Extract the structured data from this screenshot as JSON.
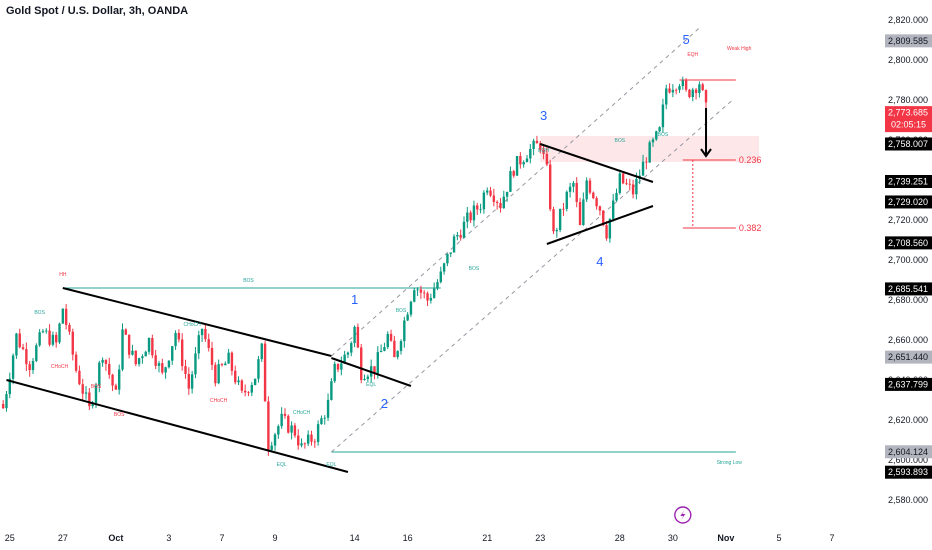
{
  "header": {
    "title": "Gold Spot / U.S. Dollar, 3h, OANDA"
  },
  "colors": {
    "up": "#089981",
    "down": "#f23645",
    "trend": "#000000",
    "channel": "#9598a1",
    "structure": "#26a69a",
    "wave": "#2962ff",
    "fib": "#f23645"
  },
  "chart_data": {
    "type": "candlestick",
    "symbol": "Gold Spot / U.S. Dollar",
    "timeframe": "3h",
    "source": "OANDA",
    "ylim": [
      2570,
      2830
    ],
    "y_ticks": [
      2580,
      2600,
      2620,
      2640,
      2660,
      2680,
      2700,
      2720,
      2740,
      2760,
      2780,
      2800,
      2820
    ],
    "y_tick_labels": [
      "2,580.000",
      "2,600.000",
      "2,620.000",
      "2,640.000",
      "2,660.000",
      "2,680.000",
      "2,700.000",
      "2,720.000",
      "2,740.000",
      "2,760.000",
      "2,780.000",
      "2,800.000",
      "2,820.000"
    ],
    "x_ticks": [
      {
        "label": "25",
        "i": 2
      },
      {
        "label": "27",
        "i": 18
      },
      {
        "label": "Oct",
        "i": 34
      },
      {
        "label": "3",
        "i": 50
      },
      {
        "label": "7",
        "i": 66
      },
      {
        "label": "9",
        "i": 82
      },
      {
        "label": "14",
        "i": 106
      },
      {
        "label": "16",
        "i": 122
      },
      {
        "label": "21",
        "i": 146
      },
      {
        "label": "23",
        "i": 162
      },
      {
        "label": "28",
        "i": 186
      },
      {
        "label": "30",
        "i": 202
      },
      {
        "label": "Nov",
        "i": 218
      },
      {
        "label": "5",
        "i": 234
      },
      {
        "label": "7",
        "i": 250
      }
    ],
    "n_slots": 260,
    "price_path": [
      [
        0,
        2626
      ],
      [
        4,
        2662
      ],
      [
        8,
        2648
      ],
      [
        12,
        2664
      ],
      [
        16,
        2658
      ],
      [
        18,
        2676
      ],
      [
        22,
        2645
      ],
      [
        26,
        2625
      ],
      [
        30,
        2654
      ],
      [
        34,
        2632
      ],
      [
        36,
        2664
      ],
      [
        40,
        2648
      ],
      [
        44,
        2660
      ],
      [
        48,
        2642
      ],
      [
        52,
        2664
      ],
      [
        56,
        2636
      ],
      [
        60,
        2666
      ],
      [
        64,
        2642
      ],
      [
        68,
        2650
      ],
      [
        72,
        2632
      ],
      [
        76,
        2642
      ],
      [
        78,
        2655
      ],
      [
        80,
        2608
      ],
      [
        84,
        2620
      ],
      [
        88,
        2614
      ],
      [
        90,
        2606
      ],
      [
        94,
        2612
      ],
      [
        98,
        2628
      ],
      [
        100,
        2645
      ],
      [
        104,
        2654
      ],
      [
        106,
        2666
      ],
      [
        108,
        2644
      ],
      [
        112,
        2646
      ],
      [
        116,
        2662
      ],
      [
        118,
        2650
      ],
      [
        122,
        2676
      ],
      [
        124,
        2688
      ],
      [
        128,
        2680
      ],
      [
        132,
        2692
      ],
      [
        136,
        2710
      ],
      [
        140,
        2720
      ],
      [
        144,
        2728
      ],
      [
        146,
        2738
      ],
      [
        150,
        2728
      ],
      [
        154,
        2746
      ],
      [
        158,
        2754
      ],
      [
        162,
        2758
      ],
      [
        164,
        2744
      ],
      [
        166,
        2712
      ],
      [
        170,
        2732
      ],
      [
        172,
        2738
      ],
      [
        174,
        2716
      ],
      [
        176,
        2740
      ],
      [
        180,
        2726
      ],
      [
        182,
        2714
      ],
      [
        186,
        2740
      ],
      [
        190,
        2734
      ],
      [
        194,
        2752
      ],
      [
        198,
        2764
      ],
      [
        200,
        2786
      ],
      [
        204,
        2790
      ],
      [
        206,
        2783
      ],
      [
        210,
        2789
      ],
      [
        212,
        2775
      ]
    ],
    "price_tags": [
      {
        "label": "2,809.585",
        "value": 2809.585,
        "bg": "#b2b5be",
        "fg": "#131722"
      },
      {
        "label": "2,773.685",
        "value": 2773.685,
        "bg": "#f23645",
        "fg": "#ffffff",
        "countdown": "02:05:15"
      },
      {
        "label": "2,758.007",
        "value": 2758.007,
        "bg": "#000000",
        "fg": "#ffffff"
      },
      {
        "label": "2,739.251",
        "value": 2739.251,
        "bg": "#000000",
        "fg": "#ffffff"
      },
      {
        "label": "2,729.020",
        "value": 2729.02,
        "bg": "#000000",
        "fg": "#ffffff"
      },
      {
        "label": "2,708.560",
        "value": 2708.56,
        "bg": "#000000",
        "fg": "#ffffff"
      },
      {
        "label": "2,685.541",
        "value": 2685.541,
        "bg": "#000000",
        "fg": "#ffffff"
      },
      {
        "label": "2,651.440",
        "value": 2651.44,
        "bg": "#b2b5be",
        "fg": "#131722"
      },
      {
        "label": "2,637.799",
        "value": 2637.799,
        "bg": "#000000",
        "fg": "#ffffff"
      },
      {
        "label": "2,604.124",
        "value": 2604.124,
        "bg": "#b2b5be",
        "fg": "#131722"
      },
      {
        "label": "2,593.893",
        "value": 2593.893,
        "bg": "#000000",
        "fg": "#ffffff"
      }
    ],
    "trendlines": [
      {
        "from": [
          18,
          2686
        ],
        "to": [
          99,
          2652
        ]
      },
      {
        "from": [
          1,
          2640
        ],
        "to": [
          104,
          2594
        ]
      },
      {
        "from": [
          99,
          2651
        ],
        "to": [
          123,
          2637
        ]
      },
      {
        "from": [
          162,
          2758
        ],
        "to": [
          196,
          2739
        ]
      },
      {
        "from": [
          164,
          2708
        ],
        "to": [
          196,
          2727
        ]
      }
    ],
    "channel_lines": [
      {
        "from": [
          99,
          2652
        ],
        "to": [
          210,
          2816
        ]
      },
      {
        "from": [
          99,
          2604
        ],
        "to": [
          220,
          2780
        ]
      }
    ],
    "structure_lines": [
      {
        "label": "BOS",
        "value": 2686,
        "from": 18,
        "to": 132
      },
      {
        "label": "Strong Low",
        "value": 2604,
        "from": 99,
        "to": 221
      }
    ],
    "zones": [
      {
        "from": 162,
        "to": 228,
        "low": 2749,
        "high": 2762
      }
    ],
    "weak_high": {
      "label": "Weak High",
      "value": 2790,
      "from": 204,
      "to": 221
    },
    "fib_levels": [
      {
        "label": "0.236",
        "value": 2750,
        "from": 205,
        "to": 221
      },
      {
        "label": "0.382",
        "value": 2716,
        "from": 205,
        "to": 221
      }
    ],
    "projection_arrow": {
      "from": [
        212,
        2776
      ],
      "to": [
        212,
        2752
      ]
    },
    "wave_labels": [
      {
        "label": "1",
        "i": 106,
        "value": 2678
      },
      {
        "label": "2",
        "i": 115,
        "value": 2626
      },
      {
        "label": "3",
        "i": 163,
        "value": 2770
      },
      {
        "label": "4",
        "i": 180,
        "value": 2697
      },
      {
        "label": "5",
        "i": 206,
        "value": 2808
      }
    ],
    "annotations": [
      {
        "text": "HH",
        "i": 18,
        "value": 2692,
        "color": "#f23645"
      },
      {
        "text": "BOS",
        "i": 74,
        "value": 2689,
        "color": "#26a69a"
      },
      {
        "text": "BOS",
        "i": 11,
        "value": 2673,
        "color": "#26a69a"
      },
      {
        "text": "CHoCH",
        "i": 57,
        "value": 2667,
        "color": "#26a69a"
      },
      {
        "text": "CHoCH",
        "i": 17,
        "value": 2646,
        "color": "#f23645"
      },
      {
        "text": "BOS",
        "i": 28,
        "value": 2636,
        "color": "#f23645"
      },
      {
        "text": "CHoCH",
        "i": 65,
        "value": 2629,
        "color": "#f23645"
      },
      {
        "text": "BOS",
        "i": 35,
        "value": 2622,
        "color": "#f23645"
      },
      {
        "text": "CHoCH",
        "i": 90,
        "value": 2623,
        "color": "#26a69a"
      },
      {
        "text": "EQL",
        "i": 84,
        "value": 2597,
        "color": "#26a69a"
      },
      {
        "text": "BOS",
        "i": 120,
        "value": 2674,
        "color": "#26a69a"
      },
      {
        "text": "EQL",
        "i": 111,
        "value": 2637,
        "color": "#26a69a"
      },
      {
        "text": "BOS",
        "i": 142,
        "value": 2695,
        "color": "#26a69a"
      },
      {
        "text": "EQH",
        "i": 163,
        "value": 2754,
        "color": "#26a69a"
      },
      {
        "text": "BOS",
        "i": 186,
        "value": 2759,
        "color": "#26a69a"
      },
      {
        "text": "BOS",
        "i": 199,
        "value": 2762,
        "color": "#26a69a"
      },
      {
        "text": "EQH",
        "i": 208,
        "value": 2802,
        "color": "#f23645"
      },
      {
        "text": "Weak High",
        "i": 222,
        "value": 2805,
        "color": "#f23645"
      },
      {
        "text": "Strong Low",
        "i": 219,
        "value": 2598,
        "color": "#26a69a"
      },
      {
        "text": "EQL",
        "i": 99,
        "value": 2597,
        "color": "#26a69a"
      }
    ]
  }
}
